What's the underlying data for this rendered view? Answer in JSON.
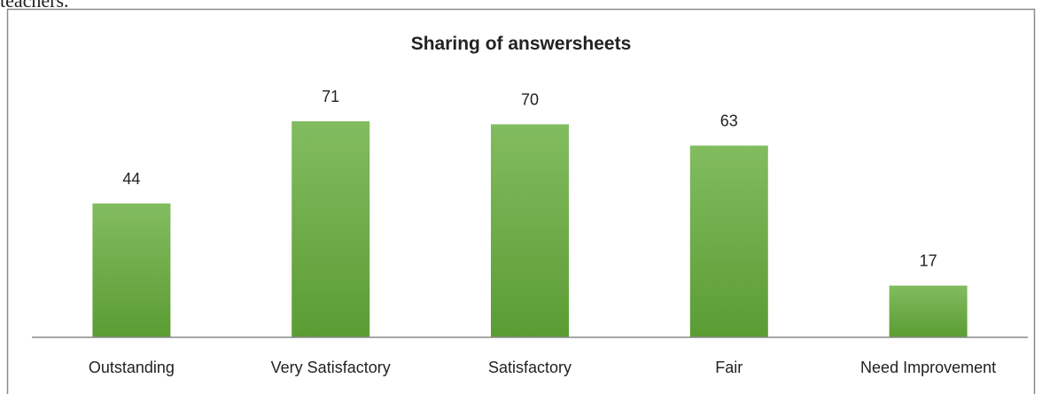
{
  "text_above": "teachers.",
  "chart_data": {
    "type": "bar",
    "title": "Sharing of answersheets",
    "categories": [
      "Outstanding",
      "Very Satisfactory",
      "Satisfactory",
      "Fair",
      "Need Improvement"
    ],
    "values": [
      44,
      71,
      70,
      63,
      17
    ],
    "color": "#6aaa42",
    "ylim": [
      0,
      80
    ]
  }
}
